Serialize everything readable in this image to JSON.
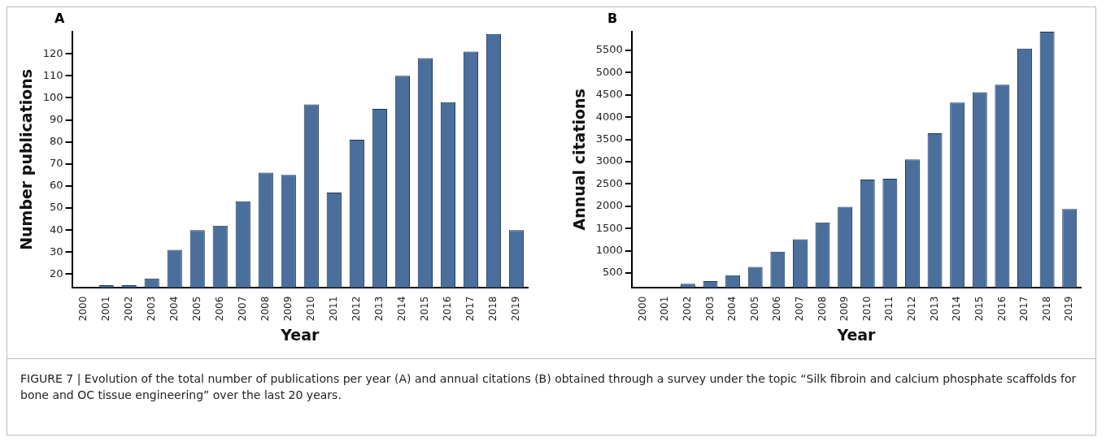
{
  "chart_data": [
    {
      "type": "bar",
      "title": "A",
      "xlabel": "Year",
      "ylabel": "Number publications",
      "categories": [
        "2000",
        "2001",
        "2002",
        "2003",
        "2004",
        "2005",
        "2006",
        "2007",
        "2008",
        "2009",
        "2010",
        "2011",
        "2012",
        "2013",
        "2014",
        "2015",
        "2016",
        "2017",
        "2018",
        "2019"
      ],
      "values": [
        null,
        15,
        15,
        18,
        31,
        40,
        42,
        53,
        66,
        65,
        97,
        57,
        81,
        95,
        110,
        118,
        98,
        121,
        129,
        40
      ],
      "color": "#4a6f9c",
      "ylim": [
        14,
        130
      ],
      "yticks": [
        20,
        30,
        40,
        50,
        60,
        70,
        80,
        90,
        100,
        110,
        120
      ],
      "grid": false,
      "legend": false,
      "annotations": [
        "FIGURE 7 | Evolution of the total number of publications per year (A) and annual citations (B) obtained through a survey under the topic “Silk fibroin and calcium phosphate scaffolds for bone and OC tissue engineering” over the last 20 years."
      ]
    },
    {
      "type": "bar",
      "title": "B",
      "xlabel": "Year",
      "ylabel": "Annual citations",
      "categories": [
        "2000",
        "2001",
        "2002",
        "2003",
        "2004",
        "2005",
        "2006",
        "2007",
        "2008",
        "2009",
        "2010",
        "2011",
        "2012",
        "2013",
        "2014",
        "2015",
        "2016",
        "2017",
        "2018",
        "2019"
      ],
      "values": [
        null,
        null,
        260,
        320,
        450,
        640,
        980,
        1260,
        1640,
        1990,
        2600,
        2620,
        3050,
        3640,
        4330,
        4560,
        4730,
        5540,
        5920,
        1940
      ],
      "color": "#4a6f9c",
      "ylim": [
        180,
        5920
      ],
      "yticks": [
        500,
        1000,
        1500,
        2000,
        2500,
        3000,
        3500,
        4000,
        4500,
        5000,
        5500
      ],
      "grid": false,
      "legend": false
    }
  ]
}
